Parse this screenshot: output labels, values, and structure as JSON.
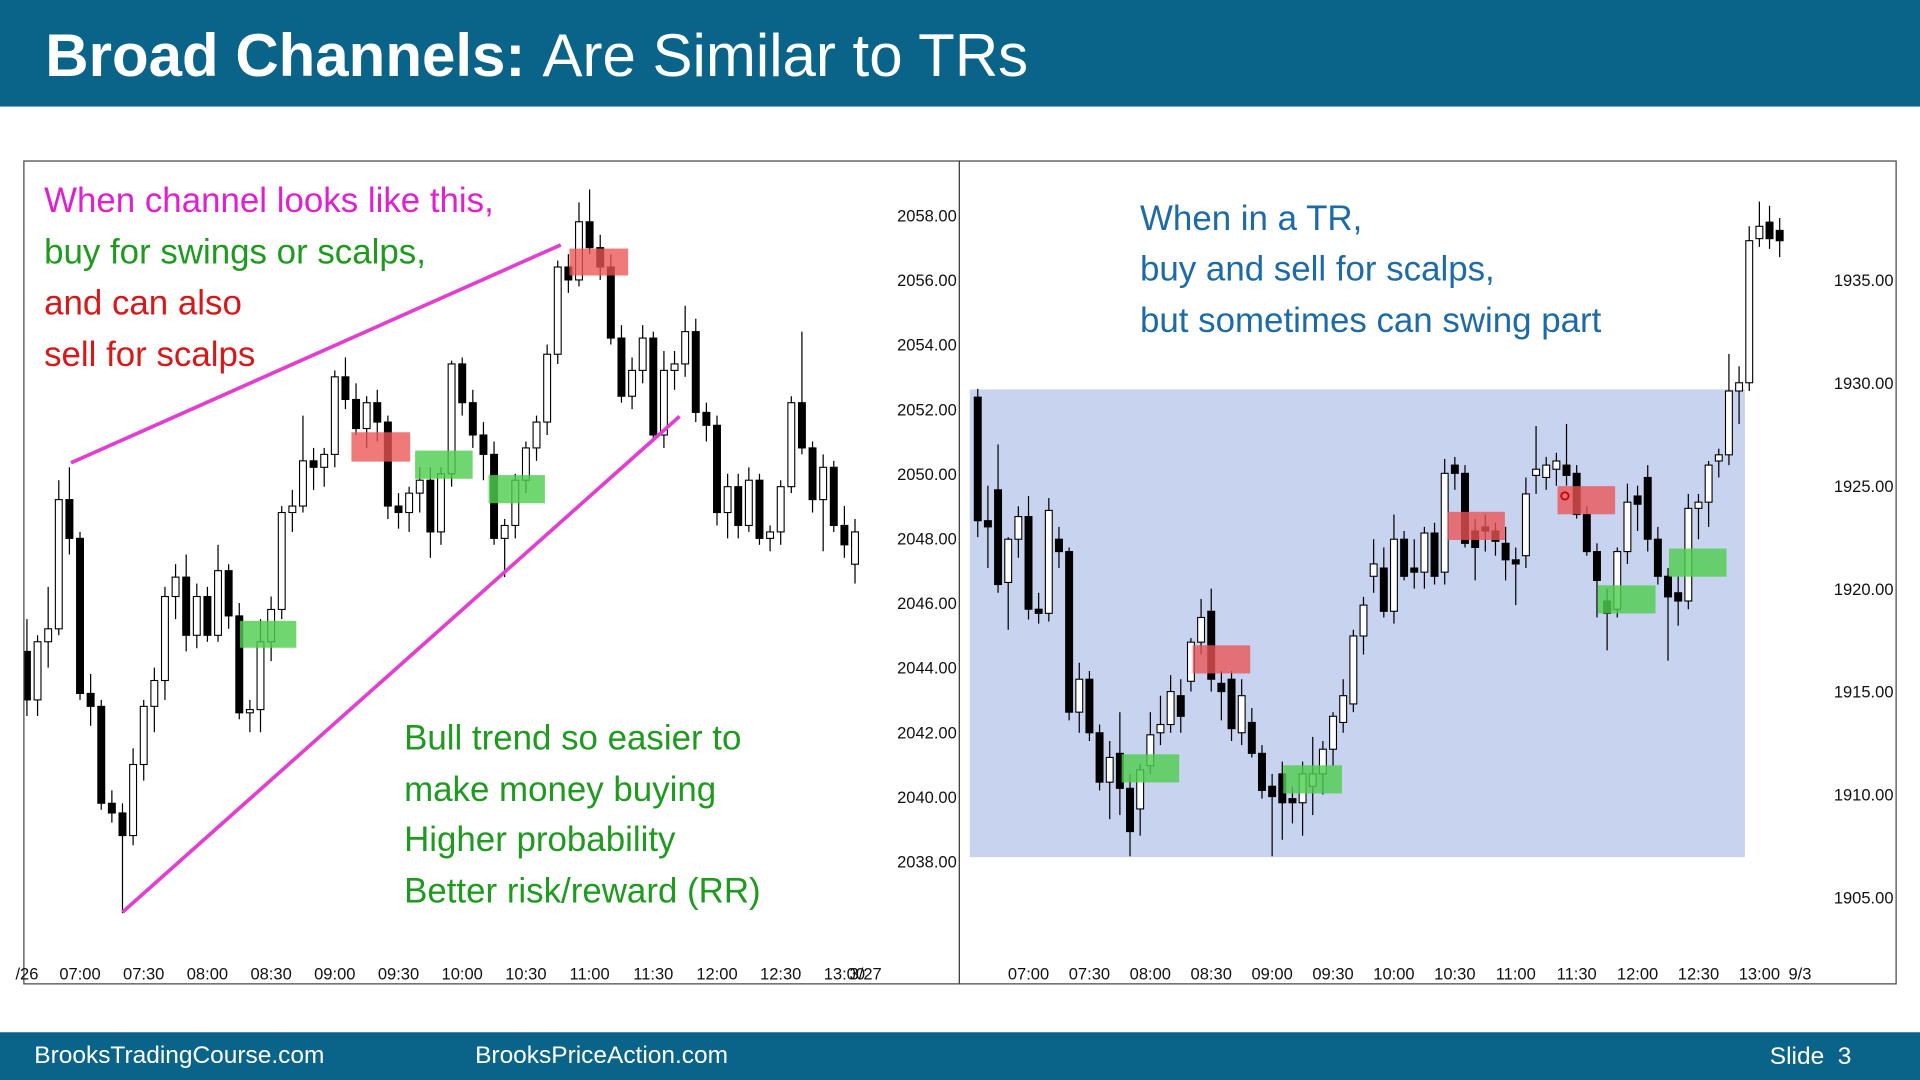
{
  "header": {
    "title_bold": "Broad Channels:",
    "title_rest": "Are Similar to TRs"
  },
  "footer": {
    "left": "BrooksTradingCourse.com",
    "center": "BrooksPriceAction.com",
    "slide": "Slide  3"
  },
  "chart_data": [
    {
      "type": "candlestick",
      "annotations": [
        {
          "text": "When channel looks like this,",
          "color": "#e020d0"
        },
        {
          "text": "buy for swings or scalps,",
          "color": "#1e9a1e"
        },
        {
          "text": "and can also",
          "color": "#d81818"
        },
        {
          "text": "sell for scalps",
          "color": "#d81818"
        },
        {
          "text": "Bull trend so easier to",
          "color": "#1e9a1e"
        },
        {
          "text": "make money buying",
          "color": "#1e9a1e"
        },
        {
          "text": "Higher probability",
          "color": "#1e9a1e"
        },
        {
          "text": "Better risk/reward (RR)",
          "color": "#1e9a1e"
        }
      ],
      "categories": [
        "/26",
        null,
        null,
        null,
        null,
        "07:00",
        null,
        null,
        null,
        null,
        null,
        "07:30",
        null,
        null,
        null,
        null,
        null,
        "08:00",
        null,
        null,
        null,
        null,
        null,
        "08:30",
        null,
        null,
        null,
        null,
        null,
        "09:00",
        null,
        null,
        null,
        null,
        null,
        "09:30",
        null,
        null,
        null,
        null,
        null,
        "10:00",
        null,
        null,
        null,
        null,
        null,
        "10:30",
        null,
        null,
        null,
        null,
        null,
        "11:00",
        null,
        null,
        null,
        null,
        null,
        "11:30",
        null,
        null,
        null,
        null,
        null,
        "12:00",
        null,
        null,
        null,
        null,
        null,
        "12:30",
        null,
        null,
        null,
        null,
        null,
        "13:00",
        null,
        "3/27"
      ],
      "open": [
        2044.5,
        2043,
        2044.8,
        2045.2,
        2049.2,
        2048,
        2043.2,
        2042.8,
        2039.8,
        2039.5,
        2038.8,
        2041,
        2042.8,
        2043.6,
        2046.2,
        2046.8,
        2045,
        2046.2,
        2045,
        2047,
        2045.6,
        2042.6,
        2042.7,
        2044.8,
        2045.8,
        2048.8,
        2049,
        2050.4,
        2050.2,
        2050.6,
        2053,
        2052.3,
        2051.4,
        2052.2,
        2051.6,
        2049,
        2048.8,
        2049.4,
        2049.8,
        2048.2,
        2050,
        2053.4,
        2052.2,
        2051.2,
        2050.6,
        2048,
        2048.4,
        2049.8,
        2050.8,
        2051.6,
        2053.7,
        2056.4,
        2056,
        2057.8,
        2057,
        2056.4,
        2054.2,
        2052.4,
        2053.2,
        2054.2,
        2051.2,
        2053.2,
        2053.4,
        2054.4,
        2051.9,
        2051.5,
        2048.8,
        2049.6,
        2048.4,
        2049.8,
        2048,
        2048.2,
        2049.6,
        2052.2,
        2050.8,
        2049.2,
        2050.2,
        2048.4,
        2047.2,
        null
      ],
      "high": [
        2045.5,
        2045,
        2046.5,
        2049.8,
        2050.2,
        2048.2,
        2043.8,
        2043,
        2040.2,
        2039.8,
        2041.5,
        2043,
        2044,
        2046.5,
        2047.2,
        2047.5,
        2046.6,
        2046.5,
        2047.8,
        2047.2,
        2046,
        2043,
        2045.5,
        2046.2,
        2049,
        2049.5,
        2051.8,
        2050.8,
        2050.8,
        2053.2,
        2053.6,
        2052.8,
        2052.4,
        2052.6,
        2051.8,
        2049.4,
        2049.6,
        2050.2,
        2050.2,
        2050.2,
        2053.5,
        2053.6,
        2052.6,
        2051.6,
        2051,
        2048.6,
        2050,
        2051,
        2051.8,
        2054,
        2056.6,
        2056.8,
        2058.4,
        2058.8,
        2057.4,
        2056.8,
        2054.6,
        2053.6,
        2054.6,
        2054.4,
        2053.8,
        2053.8,
        2055.2,
        2054.8,
        2052.2,
        2051.8,
        2050,
        2050,
        2050.2,
        2050,
        2048.4,
        2049.8,
        2052.4,
        2054.4,
        2051,
        2050.6,
        2050.4,
        2049,
        2048.6,
        null
      ],
      "low": [
        2042.5,
        2042.5,
        2044,
        2045,
        2047.5,
        2043,
        2042.2,
        2039.6,
        2039.2,
        2036.4,
        2038.5,
        2040.5,
        2042,
        2043,
        2045.5,
        2044.5,
        2044.6,
        2044.8,
        2044.8,
        2045.2,
        2042.4,
        2042,
        2042,
        2044.2,
        2045.5,
        2048.2,
        2048.8,
        2049.5,
        2049.6,
        2050.2,
        2052,
        2051.2,
        2050.8,
        2051,
        2048.6,
        2048.3,
        2048.2,
        2048.8,
        2047.4,
        2047.8,
        2049.6,
        2051.8,
        2050.8,
        2049.8,
        2047.8,
        2046.8,
        2048,
        2049.4,
        2050.4,
        2051.2,
        2053.4,
        2055.6,
        2055.8,
        2056.8,
        2056,
        2054,
        2052.2,
        2052,
        2052.8,
        2051,
        2050.8,
        2052.6,
        2053,
        2051.6,
        2051,
        2048.4,
        2048,
        2048,
        2048.2,
        2047.8,
        2047.6,
        2047.8,
        2049.4,
        2050.6,
        2048.8,
        2047.6,
        2048.2,
        2047.4,
        2046.6,
        null
      ],
      "close": [
        2043,
        2044.8,
        2045.2,
        2049.2,
        2048,
        2043.2,
        2042.8,
        2039.8,
        2039.5,
        2038.8,
        2041,
        2042.8,
        2043.6,
        2046.2,
        2046.8,
        2045,
        2046.2,
        2045,
        2047,
        2045.6,
        2042.6,
        2042.7,
        2044.8,
        2045.8,
        2048.8,
        2049,
        2050.4,
        2050.2,
        2050.6,
        2053,
        2052.3,
        2051.4,
        2052.2,
        2051.6,
        2049,
        2048.8,
        2049.4,
        2049.8,
        2048.2,
        2050,
        2053.4,
        2052.2,
        2051.2,
        2050.6,
        2048,
        2048.4,
        2049.8,
        2050.8,
        2051.6,
        2053.7,
        2056.4,
        2056,
        2057.8,
        2057,
        2056.4,
        2054.2,
        2052.4,
        2053.2,
        2054.2,
        2051.2,
        2053.2,
        2053.4,
        2054.4,
        2051.9,
        2051.5,
        2048.8,
        2049.6,
        2048.4,
        2049.8,
        2048,
        2048.2,
        2049.6,
        2052.2,
        2050.8,
        2049.2,
        2050.2,
        2048.4,
        2047.8,
        2048.2,
        null
      ],
      "up_color": "#ffffff",
      "down_color": "#000000",
      "ylim": [
        2035.1,
        2059.7
      ],
      "yticks": [
        {
          "value": 2038,
          "label": "2038.00"
        },
        {
          "value": 2040,
          "label": "2040.00"
        },
        {
          "value": 2042,
          "label": "2042.00"
        },
        {
          "value": 2044,
          "label": "2044.00"
        },
        {
          "value": 2046,
          "label": "2046.00"
        },
        {
          "value": 2048,
          "label": "2048.00"
        },
        {
          "value": 2050,
          "label": "2050.00"
        },
        {
          "value": 2052,
          "label": "2052.00"
        },
        {
          "value": 2054,
          "label": "2054.00"
        },
        {
          "value": 2056,
          "label": "2056.00"
        },
        {
          "value": 2058,
          "label": "2058.00"
        }
      ]
    },
    {
      "type": "candlestick",
      "annotations": [
        {
          "text": "When in a TR,",
          "color": "#1c6aa8"
        },
        {
          "text": "buy and sell for scalps,",
          "color": "#1c6aa8"
        },
        {
          "text": "but sometimes can swing part",
          "color": "#1c6aa8"
        }
      ],
      "categories": [
        null,
        null,
        null,
        null,
        null,
        "07:00",
        null,
        null,
        null,
        null,
        null,
        "07:30",
        null,
        null,
        null,
        null,
        null,
        "08:00",
        null,
        null,
        null,
        null,
        null,
        "08:30",
        null,
        null,
        null,
        null,
        null,
        "09:00",
        null,
        null,
        null,
        null,
        null,
        "09:30",
        null,
        null,
        null,
        null,
        null,
        "10:00",
        null,
        null,
        null,
        null,
        null,
        "10:30",
        null,
        null,
        null,
        null,
        null,
        "11:00",
        null,
        null,
        null,
        null,
        null,
        "11:30",
        null,
        null,
        null,
        null,
        null,
        "12:00",
        null,
        null,
        null,
        null,
        null,
        "12:30",
        null,
        null,
        null,
        null,
        null,
        "13:00",
        null,
        null,
        null,
        "9/3"
      ],
      "open": [
        1929.3,
        1923.3,
        1924.8,
        1920.3,
        1922.4,
        1923.5,
        1919,
        1918.8,
        1922.4,
        1921.8,
        1914,
        1915.6,
        1913,
        1910.6,
        1912,
        1910.3,
        1909.3,
        1911.4,
        1913,
        1913.4,
        1914.8,
        1915.5,
        1917.4,
        1918.9,
        1915.4,
        1915.6,
        1913,
        1913.5,
        1912,
        1910.4,
        1911,
        1909.8,
        1909.6,
        1910.4,
        1911,
        1912.2,
        1913.5,
        1914.4,
        1917.7,
        1920.6,
        1921,
        1918.9,
        1922.4,
        1921,
        1920.8,
        1922.7,
        1920.8,
        1926,
        1925.6,
        1922.8,
        1923,
        1922.8,
        1922.2,
        1921.4,
        1921.6,
        1925.5,
        1925.4,
        1925.8,
        1926,
        1925.6,
        1923.6,
        1921.8,
        1919.4,
        1919,
        1921.8,
        1924.5,
        1925.4,
        1922.4,
        1920.6,
        1919.8,
        1919.4,
        1923.9,
        1924.2,
        1926.2,
        1926.5,
        1929.6,
        1930,
        1937,
        1937.8,
        1937.4,
        null,
        null
      ],
      "high": [
        1929.7,
        1925,
        1927,
        1922.5,
        1924,
        1924.5,
        1919.8,
        1924.4,
        1923,
        1922,
        1916.4,
        1916,
        1913.4,
        1912.6,
        1914,
        1911,
        1911.5,
        1914,
        1914.8,
        1915.8,
        1915.6,
        1917.6,
        1919.5,
        1920,
        1916,
        1916,
        1915.6,
        1914.2,
        1912.4,
        1911,
        1911.6,
        1910.4,
        1911.6,
        1912.8,
        1912.6,
        1914,
        1915.6,
        1918,
        1919.6,
        1922.4,
        1922,
        1923.6,
        1922.8,
        1922.4,
        1923,
        1923.2,
        1926.3,
        1926.4,
        1926,
        1923.4,
        1923.6,
        1923.2,
        1923,
        1922,
        1925.4,
        1927.9,
        1926.4,
        1926.6,
        1928,
        1926,
        1924,
        1922.2,
        1920,
        1922,
        1925.1,
        1925,
        1926,
        1923,
        1921,
        1920.6,
        1924.6,
        1924.6,
        1926.2,
        1926.8,
        1931.4,
        1930.8,
        1937.6,
        1938.8,
        1938.6,
        1938,
        null,
        null
      ],
      "low": [
        1922.5,
        1921,
        1919.8,
        1918,
        1921.5,
        1918.5,
        1918.3,
        1918.4,
        1921,
        1913.6,
        1913,
        1912.6,
        1910.2,
        1908.8,
        1909,
        1907,
        1908,
        1911,
        1912.4,
        1913,
        1913,
        1915,
        1916.8,
        1915,
        1913.6,
        1912.6,
        1912.4,
        1911.8,
        1909.8,
        1907,
        1907.8,
        1908.6,
        1908,
        1909,
        1910,
        1911.4,
        1913,
        1914,
        1916.8,
        1919.8,
        1918.6,
        1918.3,
        1920.4,
        1920,
        1920,
        1920.2,
        1920.2,
        1924.8,
        1922,
        1920.4,
        1921.8,
        1921.6,
        1920.4,
        1919.2,
        1921,
        1924.6,
        1924.8,
        1925,
        1925,
        1923.4,
        1921.6,
        1918.6,
        1917,
        1918.6,
        1921.2,
        1922.8,
        1921.8,
        1920.2,
        1916.5,
        1918.2,
        1919,
        1922.4,
        1923,
        1925.4,
        1926,
        1928,
        1929.6,
        1936.6,
        1936.5,
        1936.1,
        null,
        null
      ],
      "close": [
        1923.3,
        1923,
        1920.2,
        1922.4,
        1923.5,
        1919,
        1918.8,
        1923.8,
        1921.8,
        1914,
        1915.6,
        1913,
        1910.6,
        1911.8,
        1910.3,
        1908.2,
        1911.2,
        1912.9,
        1913.4,
        1915,
        1913.8,
        1917.4,
        1918.6,
        1915.6,
        1915,
        1913.2,
        1914.8,
        1912,
        1910.2,
        1909.9,
        1909.6,
        1909.6,
        1911,
        1911,
        1912.2,
        1913.8,
        1914.8,
        1917.7,
        1919.2,
        1921.2,
        1918.9,
        1922.4,
        1920.6,
        1920.8,
        1922.7,
        1920.6,
        1925.6,
        1925.6,
        1922.2,
        1922,
        1922.8,
        1922.3,
        1921.4,
        1921.2,
        1924.6,
        1925.8,
        1926,
        1926.2,
        1925.5,
        1923.6,
        1921.8,
        1920.4,
        1918.8,
        1921.8,
        1924.2,
        1924.1,
        1922.4,
        1920.6,
        1919.6,
        1919.4,
        1923.9,
        1924.2,
        1926,
        1926.5,
        1929.6,
        1930,
        1936.9,
        1937.6,
        1937,
        1936.9,
        null,
        null
      ],
      "up_color": "#ffffff",
      "down_color": "#000000",
      "ylim": [
        1902.2,
        1940.8
      ],
      "yticks": [
        {
          "value": 1905,
          "label": "1905.00"
        },
        {
          "value": 1910,
          "label": "1910.00"
        },
        {
          "value": 1915,
          "label": "1915.00"
        },
        {
          "value": 1920,
          "label": "1920.00"
        },
        {
          "value": 1925,
          "label": "1925.00"
        },
        {
          "value": 1930,
          "label": "1930.00"
        },
        {
          "value": 1935,
          "label": "1935.00"
        }
      ]
    }
  ]
}
